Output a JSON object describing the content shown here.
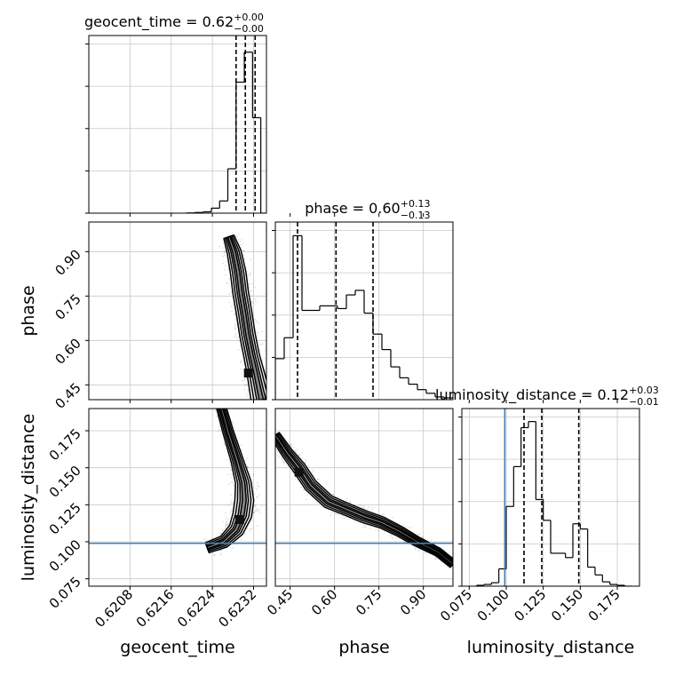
{
  "chart_data": {
    "type": "corner",
    "parameters": [
      "geocent_time",
      "phase",
      "luminosity_distance"
    ],
    "truth": {
      "luminosity_distance": 0.099
    },
    "truth_color": "#4682b4",
    "grid": true,
    "histograms": [
      {
        "parameter": "geocent_time",
        "title": {
          "name": "geocent_time",
          "median": "0.62",
          "plus": "+0.00",
          "minus": "−0.00"
        },
        "quantiles": [
          0.62286,
          0.62304,
          0.62323
        ],
        "range": [
          0.62,
          0.62345
        ],
        "edges": [
          0.6219,
          0.62206,
          0.62222,
          0.62238,
          0.62254,
          0.6227,
          0.62286,
          0.62302,
          0.62318,
          0.62334,
          0.6235
        ],
        "counts": [
          0.2,
          0.6,
          1.2,
          4.5,
          11,
          40,
          118,
          145,
          86,
          0
        ],
        "ymax": 160
      },
      {
        "parameter": "phase",
        "title": {
          "name": "phase",
          "median": "0.60",
          "plus": "+0.13",
          "minus": "−0.13"
        },
        "quantiles": [
          0.475,
          0.605,
          0.73
        ],
        "range": [
          0.4,
          1.0
        ],
        "edges": [
          0.4,
          0.43,
          0.46,
          0.49,
          0.52,
          0.55,
          0.58,
          0.61,
          0.64,
          0.67,
          0.7,
          0.73,
          0.76,
          0.79,
          0.82,
          0.85,
          0.88,
          0.91,
          0.94,
          0.97,
          1.0
        ],
        "counts": [
          45,
          68,
          180,
          98,
          98,
          103,
          103,
          100,
          115,
          120,
          95,
          72,
          55,
          36,
          24,
          17,
          11,
          7,
          3,
          2
        ],
        "ymax": 195
      },
      {
        "parameter": "luminosity_distance",
        "title": {
          "name": "luminosity_distance",
          "median": "0.12",
          "plus": "+0.03",
          "minus": "−0.01"
        },
        "quantiles": [
          0.112,
          0.124,
          0.149
        ],
        "range": [
          0.07,
          0.19
        ],
        "edges": [
          0.08,
          0.085,
          0.09,
          0.095,
          0.1,
          0.105,
          0.11,
          0.115,
          0.12,
          0.125,
          0.13,
          0.135,
          0.14,
          0.145,
          0.15,
          0.155,
          0.16,
          0.165,
          0.17,
          0.175,
          0.18,
          0.185
        ],
        "counts": [
          1,
          2,
          4,
          20,
          92,
          138,
          183,
          190,
          100,
          76,
          38,
          38,
          33,
          72,
          66,
          22,
          13,
          5,
          2,
          1,
          0
        ],
        "ymax": 205
      }
    ],
    "contours": [
      {
        "x": "geocent_time",
        "y": "phase",
        "median": [
          0.6231,
          0.49
        ],
        "ridge": [
          [
            0.62272,
            0.95
          ],
          [
            0.62282,
            0.9
          ],
          [
            0.6229,
            0.83
          ],
          [
            0.62295,
            0.76
          ],
          [
            0.62301,
            0.7
          ],
          [
            0.62308,
            0.62
          ],
          [
            0.62316,
            0.55
          ],
          [
            0.62324,
            0.49
          ],
          [
            0.6233,
            0.44
          ],
          [
            0.62335,
            0.4
          ]
        ],
        "widths": [
          3e-05,
          5e-05,
          6e-05,
          6e-05,
          6e-05,
          6e-05,
          6e-05,
          7e-05,
          8e-05,
          9e-05
        ]
      },
      {
        "x": "geocent_time",
        "y": "luminosity_distance",
        "median": [
          0.62293,
          0.115
        ],
        "ridge": [
          [
            0.6225,
            0.2
          ],
          [
            0.6227,
            0.175
          ],
          [
            0.62288,
            0.155
          ],
          [
            0.623,
            0.14
          ],
          [
            0.62302,
            0.128
          ],
          [
            0.62298,
            0.118
          ],
          [
            0.62286,
            0.108
          ],
          [
            0.62262,
            0.1
          ],
          [
            0.6223,
            0.096
          ]
        ],
        "widths": [
          2e-05,
          3e-05,
          4e-05,
          6e-05,
          8e-05,
          8e-05,
          6e-05,
          4e-05,
          3e-05
        ]
      },
      {
        "x": "phase",
        "y": "luminosity_distance",
        "median": [
          0.48,
          0.147
        ],
        "ridge": [
          [
            0.4,
            0.172
          ],
          [
            0.44,
            0.16
          ],
          [
            0.48,
            0.15
          ],
          [
            0.52,
            0.138
          ],
          [
            0.58,
            0.127
          ],
          [
            0.64,
            0.122
          ],
          [
            0.7,
            0.117
          ],
          [
            0.76,
            0.113
          ],
          [
            0.82,
            0.107
          ],
          [
            0.88,
            0.1
          ],
          [
            0.95,
            0.093
          ],
          [
            1.0,
            0.085
          ]
        ],
        "widths": [
          0.004,
          0.006,
          0.008,
          0.008,
          0.008,
          0.007,
          0.007,
          0.006,
          0.005,
          0.004,
          0.003,
          0.003
        ]
      }
    ],
    "axes": {
      "geocent_time": {
        "label": "geocent_time",
        "ticks": [
          "0.6208",
          "0.6216",
          "0.6224",
          "0.6232"
        ],
        "tick_values": [
          0.6208,
          0.6216,
          0.6224,
          0.6232
        ]
      },
      "phase": {
        "label": "phase",
        "ticks": [
          "0.45",
          "0.60",
          "0.75",
          "0.90"
        ],
        "tick_values": [
          0.45,
          0.6,
          0.75,
          0.9
        ]
      },
      "luminosity_distance": {
        "label": "luminosity_distance",
        "ticks": [
          "0.075",
          "0.100",
          "0.125",
          "0.150",
          "0.175"
        ],
        "tick_values": [
          0.075,
          0.1,
          0.125,
          0.15,
          0.175
        ]
      }
    },
    "geocent_time_range": [
      0.62,
      0.62345
    ],
    "phase_range": [
      0.4,
      1.0
    ],
    "luminosity_distance_range": [
      0.07,
      0.19
    ]
  }
}
